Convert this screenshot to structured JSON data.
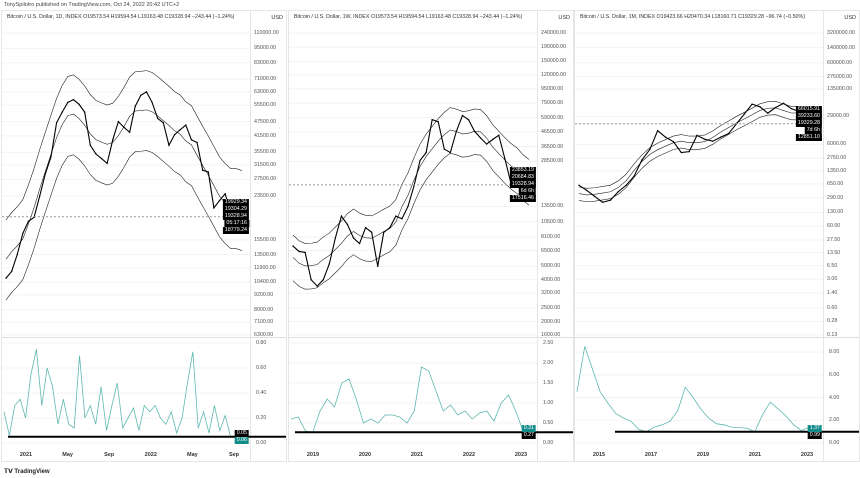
{
  "header": {
    "published": "TonySpilotro published on TradingView.com, Oct 24, 2022 20:42 UTC+2"
  },
  "footer": {
    "logo": "TradingView"
  },
  "colors": {
    "price": "#000000",
    "indicator": "#5fb8b2",
    "teal": "#138d8a"
  },
  "chart_data": [
    {
      "type": "line",
      "title": "Bitcoin / U.S. Dollar, 1D, INDEX  O19573.54  H19594.54  L19163.48  C19328.94  −243.44 (−1.24%)",
      "currency": "USD",
      "scale": "log",
      "yticks": [
        "110000.00",
        "95000.00",
        "83000.00",
        "71000.00",
        "63000.00",
        "55500.00",
        "47500.00",
        "41500.00",
        "35500.00",
        "31500.00",
        "27500.00",
        "23500.00",
        "15500.00",
        "13500.00",
        "11900.00",
        "10400.00",
        "9200.00",
        "8000.00",
        "7100.00",
        "6300.00"
      ],
      "ylim": [
        6300,
        110000
      ],
      "price_labels": [
        "19929.34",
        "19304.29",
        "19328.94",
        "05:17:16",
        "18779.24"
      ],
      "close": [
        10800,
        11500,
        13500,
        16500,
        18500,
        19200,
        23500,
        29000,
        34000,
        47000,
        52000,
        57000,
        58500,
        56000,
        52000,
        38000,
        35000,
        33500,
        32000,
        40000,
        47500,
        45000,
        43000,
        55000,
        61000,
        63000,
        57000,
        49000,
        47000,
        38000,
        42000,
        44000,
        46000,
        40000,
        39000,
        30000,
        29500,
        21000,
        22500,
        24000,
        20000,
        19500,
        19300
      ],
      "indicator": {
        "yticks": [
          "0.80",
          "0.60",
          "0.40",
          "0.20",
          "0.00"
        ],
        "ylim": [
          0,
          0.8
        ],
        "labels": [
          "0.05",
          "0.06"
        ],
        "threshold": 0.05,
        "values": [
          0.25,
          0.06,
          0.3,
          0.35,
          0.2,
          0.55,
          0.75,
          0.3,
          0.6,
          0.45,
          0.15,
          0.35,
          0.15,
          0.12,
          0.7,
          0.2,
          0.3,
          0.15,
          0.45,
          0.1,
          0.3,
          0.48,
          0.12,
          0.2,
          0.28,
          0.1,
          0.3,
          0.25,
          0.3,
          0.2,
          0.15,
          0.25,
          0.08,
          0.2,
          0.48,
          0.73,
          0.12,
          0.25,
          0.08,
          0.3,
          0.1,
          0.22,
          0.05,
          0.06
        ]
      },
      "xticks": [
        "2021",
        "May",
        "Sep",
        "2022",
        "May",
        "Sep"
      ]
    },
    {
      "type": "line",
      "title": "Bitcoin / U.S. Dollar, 1W, INDEX  O19573.54  H19594.54  L19163.48  C19328.94  −243.44 (−1.24%)",
      "currency": "USD",
      "scale": "log",
      "yticks": [
        "240000.00",
        "190000.00",
        "150000.00",
        "120000.00",
        "95000.00",
        "75000.00",
        "59000.00",
        "46500.00",
        "36500.00",
        "28500.00",
        "13500.00",
        "10500.00",
        "8100.00",
        "6500.00",
        "5000.00",
        "4000.00",
        "3200.00",
        "2500.00",
        "2000.00",
        "1600.00"
      ],
      "ylim": [
        1600,
        240000
      ],
      "price_labels": [
        "23853.19",
        "20684.83",
        "19328.94",
        "6d 6h",
        "17516.46"
      ],
      "close": [
        7000,
        6400,
        6300,
        4000,
        3600,
        4000,
        5200,
        8000,
        11500,
        10000,
        8000,
        7300,
        9500,
        8800,
        5000,
        8800,
        9500,
        11500,
        11000,
        13500,
        19000,
        29000,
        33000,
        57000,
        55000,
        35000,
        33000,
        47000,
        61000,
        57000,
        47000,
        42000,
        38000,
        41000,
        44000,
        30000,
        20000,
        22000,
        20000,
        19300
      ],
      "indicator": {
        "yticks": [
          "2.50",
          "2.00",
          "1.50",
          "1.00",
          "0.50",
          "0.00"
        ],
        "ylim": [
          0,
          2.5
        ],
        "labels": [
          "0.31",
          "0.27"
        ],
        "threshold": 0.27,
        "values": [
          0.6,
          0.65,
          0.3,
          0.27,
          0.8,
          1.1,
          0.9,
          1.5,
          1.6,
          1.1,
          0.5,
          0.6,
          0.5,
          0.7,
          0.7,
          0.65,
          0.5,
          0.8,
          1.9,
          1.8,
          1.3,
          0.8,
          0.95,
          0.7,
          0.8,
          0.6,
          0.75,
          0.8,
          0.55,
          1.0,
          1.2,
          0.8,
          0.3
        ]
      },
      "xticks": [
        "2019",
        "2020",
        "2021",
        "2022",
        "2023"
      ]
    },
    {
      "type": "line",
      "title": "Bitcoin / U.S. Dollar, 1M, INDEX  O19423.66  H20470.34  L18160.71  C19329.28  −96.74 (−0.50%)",
      "currency": "USD",
      "scale": "log",
      "yticks": [
        "3200000.00",
        "1400000.00",
        "600000.00",
        "275000.00",
        "135000.00",
        "29000.00",
        "6000.00",
        "2750.00",
        "1350.00",
        "650.00",
        "290.00",
        "130.00",
        "60.00",
        "27.50",
        "13.50",
        "6.50",
        "3.00",
        "1.40",
        "0.60",
        "0.28",
        "0.13"
      ],
      "ylim": [
        0.13,
        3200000
      ],
      "price_labels": [
        "66015.91",
        "39233.60",
        "19329.28",
        "7d 6h",
        "12851.10"
      ],
      "close": [
        600,
        450,
        320,
        230,
        260,
        420,
        600,
        1000,
        2500,
        4500,
        13000,
        9000,
        7000,
        3800,
        4000,
        10000,
        8000,
        7200,
        9000,
        11000,
        19000,
        33000,
        58000,
        50000,
        35000,
        48000,
        61000,
        45000,
        38000,
        20000,
        19300
      ],
      "indicator": {
        "yticks": [
          "8.00",
          "6.00",
          "4.00",
          "2.00",
          "0.00"
        ],
        "ylim": [
          0,
          8.8
        ],
        "labels": [
          "1.37",
          "0.99"
        ],
        "threshold": 0.99,
        "values": [
          4.5,
          8.5,
          6.5,
          4.5,
          3.5,
          2.6,
          2.2,
          1.9,
          1.2,
          0.99,
          1.4,
          1.6,
          1.9,
          2.8,
          4.9,
          4.0,
          3.0,
          2.2,
          1.7,
          1.6,
          1.4,
          1.35,
          1.3,
          1.0,
          2.5,
          3.6,
          3.0,
          2.4,
          1.6,
          1.1,
          1.37
        ]
      },
      "xticks": [
        "2015",
        "2017",
        "2019",
        "2021",
        "2023"
      ]
    }
  ]
}
